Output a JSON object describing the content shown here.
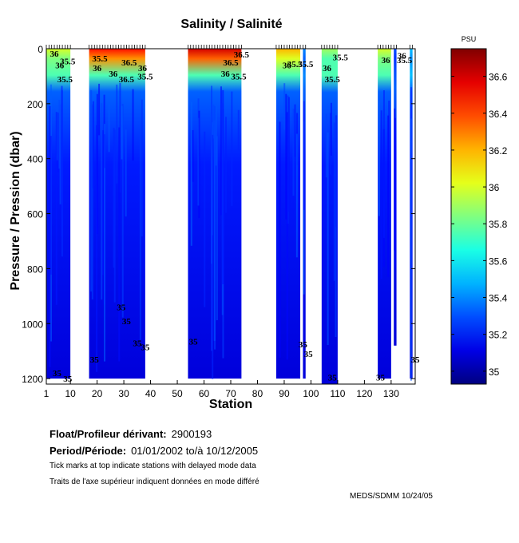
{
  "header": {
    "title": "Salinity / Salinité",
    "units": "PSU"
  },
  "info": {
    "float_label": "Float/Profileur dérivant:",
    "float_id": "2900193",
    "period_label": "Period/Période:",
    "period_value": "01/01/2002  to/à  10/12/2005",
    "note_en": "Tick marks at top indicate stations with delayed mode data",
    "note_fr": "Traits de l'axe supérieur indiquent données en mode différé",
    "footer": "MEDS/SDMM  10/24/05"
  },
  "chart_data": {
    "type": "heatmap",
    "title": "Salinity / Salinité",
    "xlabel": "Station",
    "ylabel": "Pressure / Pression (dbar)",
    "xlim": [
      1,
      139
    ],
    "ylim": [
      1220,
      0
    ],
    "y_reversed": true,
    "xticks": [
      1,
      10,
      20,
      30,
      40,
      50,
      60,
      70,
      80,
      90,
      100,
      110,
      120,
      130
    ],
    "yticks": [
      0,
      200,
      400,
      600,
      800,
      1000,
      1200
    ],
    "colorbar": {
      "label": "PSU",
      "range": [
        34.93,
        36.75
      ],
      "ticks": [
        35,
        35.2,
        35.4,
        35.6,
        35.8,
        36,
        36.2,
        36.4,
        36.6
      ],
      "colormap": "jet"
    },
    "data_segments": [
      {
        "from": 1,
        "to": 10,
        "max_pressure": 1200,
        "surface_max": 36.0
      },
      {
        "from": 17,
        "to": 38,
        "max_pressure": 1200,
        "surface_max": 36.5
      },
      {
        "from": 54,
        "to": 74,
        "max_pressure": 1200,
        "surface_max": 36.6
      },
      {
        "from": 87,
        "to": 96,
        "max_pressure": 1200,
        "surface_max": 36.2
      },
      {
        "from": 97,
        "to": 98,
        "max_pressure": 1200,
        "surface_max": 35.4
      },
      {
        "from": 104,
        "to": 110,
        "max_pressure": 1220,
        "surface_max": 35.9
      },
      {
        "from": 125,
        "to": 130,
        "max_pressure": 1200,
        "surface_max": 36.0
      },
      {
        "from": 131,
        "to": 132,
        "max_pressure": 1080,
        "surface_max": 35.3
      },
      {
        "from": 137,
        "to": 138,
        "max_pressure": 1200,
        "surface_max": 35.5
      }
    ],
    "contour_labels": [
      {
        "text": "36",
        "station": 4,
        "pressure": 18
      },
      {
        "text": "35.5",
        "station": 9,
        "pressure": 45
      },
      {
        "text": "36",
        "station": 6,
        "pressure": 60
      },
      {
        "text": "35.5",
        "station": 8,
        "pressure": 110
      },
      {
        "text": "35.5",
        "station": 21,
        "pressure": 35
      },
      {
        "text": "36",
        "station": 20,
        "pressure": 70
      },
      {
        "text": "36",
        "station": 26,
        "pressure": 90
      },
      {
        "text": "36.5",
        "station": 32,
        "pressure": 50
      },
      {
        "text": "36.5",
        "station": 31,
        "pressure": 110
      },
      {
        "text": "36",
        "station": 37,
        "pressure": 70
      },
      {
        "text": "35.5",
        "station": 38,
        "pressure": 100
      },
      {
        "text": "36.5",
        "station": 70,
        "pressure": 50
      },
      {
        "text": "36",
        "station": 68,
        "pressure": 90
      },
      {
        "text": "35.5",
        "station": 73,
        "pressure": 100
      },
      {
        "text": "36.5",
        "station": 74,
        "pressure": 20
      },
      {
        "text": "36",
        "station": 91,
        "pressure": 60
      },
      {
        "text": "35.5",
        "station": 94,
        "pressure": 55
      },
      {
        "text": "35.5",
        "station": 98,
        "pressure": 55
      },
      {
        "text": "36",
        "station": 106,
        "pressure": 70
      },
      {
        "text": "35.5",
        "station": 111,
        "pressure": 30
      },
      {
        "text": "35.5",
        "station": 108,
        "pressure": 110
      },
      {
        "text": "36",
        "station": 134,
        "pressure": 25
      },
      {
        "text": "36",
        "station": 128,
        "pressure": 40
      },
      {
        "text": "35.5",
        "station": 135,
        "pressure": 40
      },
      {
        "text": "35",
        "station": 29,
        "pressure": 940
      },
      {
        "text": "35",
        "station": 31,
        "pressure": 990
      },
      {
        "text": "35",
        "station": 35,
        "pressure": 1070
      },
      {
        "text": "35",
        "station": 38,
        "pressure": 1085
      },
      {
        "text": "35",
        "station": 19,
        "pressure": 1130
      },
      {
        "text": "35",
        "station": 5,
        "pressure": 1180
      },
      {
        "text": "35",
        "station": 9,
        "pressure": 1200
      },
      {
        "text": "35",
        "station": 56,
        "pressure": 1065
      },
      {
        "text": "35",
        "station": 97,
        "pressure": 1075
      },
      {
        "text": "35",
        "station": 99,
        "pressure": 1110
      },
      {
        "text": "35",
        "station": 108,
        "pressure": 1195
      },
      {
        "text": "35",
        "station": 126,
        "pressure": 1195
      },
      {
        "text": "35",
        "station": 139,
        "pressure": 1130
      }
    ],
    "delayed_mode_ticks": [
      [
        1,
        10
      ],
      [
        17,
        38
      ],
      [
        54,
        74
      ],
      [
        87,
        96
      ],
      [
        97,
        98
      ],
      [
        104,
        110
      ],
      [
        125,
        130
      ],
      [
        131,
        132
      ],
      [
        137,
        138
      ]
    ]
  }
}
